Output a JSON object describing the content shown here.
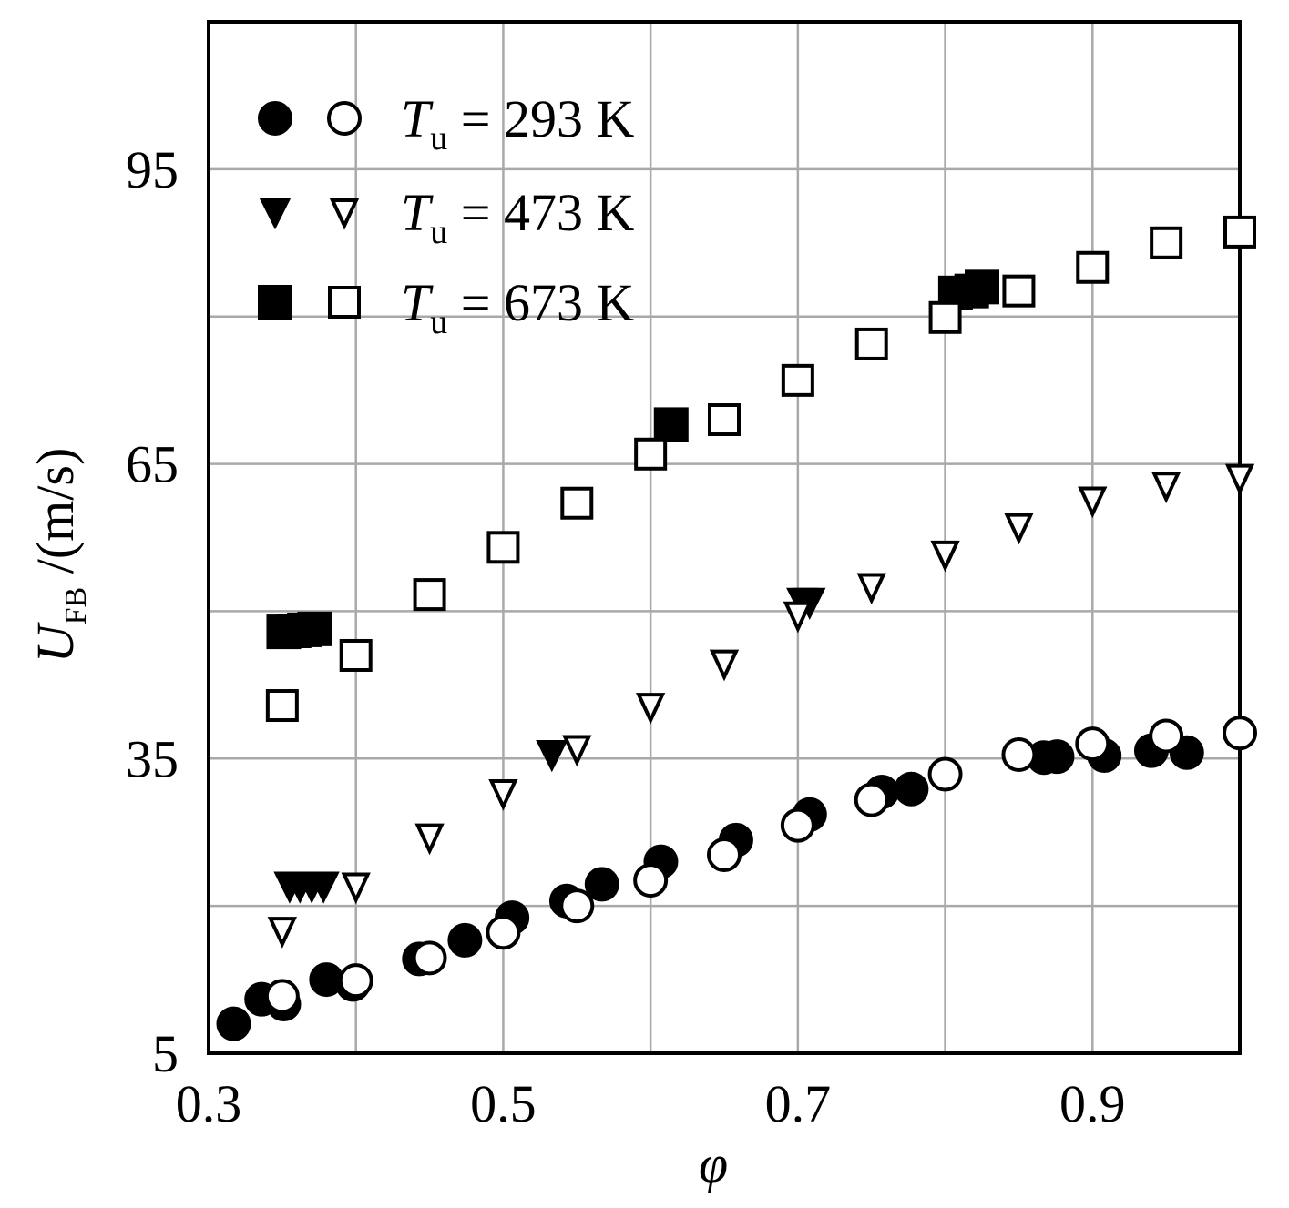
{
  "chart_data": {
    "type": "scatter",
    "xlabel": "φ",
    "ylabel": "U_FB /(m/s)",
    "xlabel_parts": {
      "main": "φ"
    },
    "ylabel_parts": {
      "main": "U",
      "sub": "FB",
      "rest": " /(m/s)"
    },
    "xlim": [
      0.3,
      1.0
    ],
    "ylim": [
      5,
      110
    ],
    "x_ticks": [
      0.3,
      0.5,
      0.7,
      0.9
    ],
    "x_tick_labels": [
      "0.3",
      "0.5",
      "0.7",
      "0.9"
    ],
    "y_ticks": [
      5,
      35,
      65,
      95
    ],
    "y_tick_labels": [
      "5",
      "35",
      "65",
      "95"
    ],
    "grid": true,
    "legend_position": "top-left",
    "series": [
      {
        "name": "T_u = 293 K (filled)",
        "group": 0,
        "marker": "circle",
        "filled": true,
        "points": [
          [
            0.317,
            8.0
          ],
          [
            0.336,
            10.5
          ],
          [
            0.351,
            10.0
          ],
          [
            0.38,
            12.5
          ],
          [
            0.398,
            12.0
          ],
          [
            0.443,
            14.6
          ],
          [
            0.474,
            16.5
          ],
          [
            0.506,
            18.8
          ],
          [
            0.543,
            20.5
          ],
          [
            0.567,
            22.2
          ],
          [
            0.607,
            24.5
          ],
          [
            0.658,
            26.7
          ],
          [
            0.708,
            29.3
          ],
          [
            0.757,
            31.6
          ],
          [
            0.777,
            31.9
          ],
          [
            0.867,
            35.1
          ],
          [
            0.876,
            35.2
          ],
          [
            0.908,
            35.3
          ],
          [
            0.94,
            35.8
          ],
          [
            0.964,
            35.6
          ]
        ]
      },
      {
        "name": "T_u = 293 K (open)",
        "group": 0,
        "marker": "circle",
        "filled": false,
        "points": [
          [
            0.35,
            10.8
          ],
          [
            0.4,
            12.4
          ],
          [
            0.45,
            14.7
          ],
          [
            0.5,
            17.3
          ],
          [
            0.55,
            20.0
          ],
          [
            0.6,
            22.6
          ],
          [
            0.65,
            25.2
          ],
          [
            0.7,
            28.2
          ],
          [
            0.75,
            30.8
          ],
          [
            0.8,
            33.4
          ],
          [
            0.85,
            35.4
          ],
          [
            0.9,
            36.5
          ],
          [
            0.95,
            37.3
          ],
          [
            1.0,
            37.6
          ]
        ]
      },
      {
        "name": "T_u = 473 K (filled)",
        "group": 1,
        "marker": "triangle-down",
        "filled": true,
        "points": [
          [
            0.355,
            22.0
          ],
          [
            0.362,
            22.0
          ],
          [
            0.37,
            22.0
          ],
          [
            0.378,
            22.0
          ],
          [
            0.533,
            35.4
          ],
          [
            0.703,
            50.9
          ],
          [
            0.708,
            50.9
          ]
        ]
      },
      {
        "name": "T_u = 473 K (open)",
        "group": 1,
        "marker": "triangle-down",
        "filled": false,
        "points": [
          [
            0.35,
            17.5
          ],
          [
            0.4,
            22.0
          ],
          [
            0.45,
            27.0
          ],
          [
            0.5,
            31.5
          ],
          [
            0.55,
            36.0
          ],
          [
            0.6,
            40.3
          ],
          [
            0.65,
            44.7
          ],
          [
            0.7,
            49.6
          ],
          [
            0.75,
            52.5
          ],
          [
            0.8,
            55.8
          ],
          [
            0.85,
            58.6
          ],
          [
            0.9,
            61.3
          ],
          [
            0.95,
            62.8
          ],
          [
            1.0,
            63.6
          ]
        ]
      },
      {
        "name": "T_u = 673 K (filled)",
        "group": 2,
        "marker": "square",
        "filled": true,
        "points": [
          [
            0.351,
            47.9
          ],
          [
            0.358,
            48.0
          ],
          [
            0.365,
            48.1
          ],
          [
            0.372,
            48.2
          ],
          [
            0.614,
            69.0
          ],
          [
            0.807,
            82.4
          ],
          [
            0.818,
            82.6
          ],
          [
            0.825,
            83.0
          ]
        ]
      },
      {
        "name": "T_u = 673 K (open)",
        "group": 2,
        "marker": "square",
        "filled": false,
        "points": [
          [
            0.35,
            40.4
          ],
          [
            0.4,
            45.5
          ],
          [
            0.45,
            51.7
          ],
          [
            0.5,
            56.5
          ],
          [
            0.55,
            61.0
          ],
          [
            0.6,
            66.0
          ],
          [
            0.65,
            69.5
          ],
          [
            0.7,
            73.5
          ],
          [
            0.75,
            77.2
          ],
          [
            0.8,
            79.9
          ],
          [
            0.85,
            82.6
          ],
          [
            0.9,
            85.0
          ],
          [
            0.95,
            87.5
          ],
          [
            1.0,
            88.6
          ]
        ]
      }
    ],
    "legend": [
      {
        "symbol_filled": "circle",
        "symbol_open": "circle",
        "label_main": "T",
        "label_sub": "u",
        "label_rest": " = 293 K"
      },
      {
        "symbol_filled": "triangle-down",
        "symbol_open": "triangle-down",
        "label_main": "T",
        "label_sub": "u",
        "label_rest": " = 473 K"
      },
      {
        "symbol_filled": "square",
        "symbol_open": "square",
        "label_main": "T",
        "label_sub": "u",
        "label_rest": " = 673 K"
      }
    ]
  }
}
